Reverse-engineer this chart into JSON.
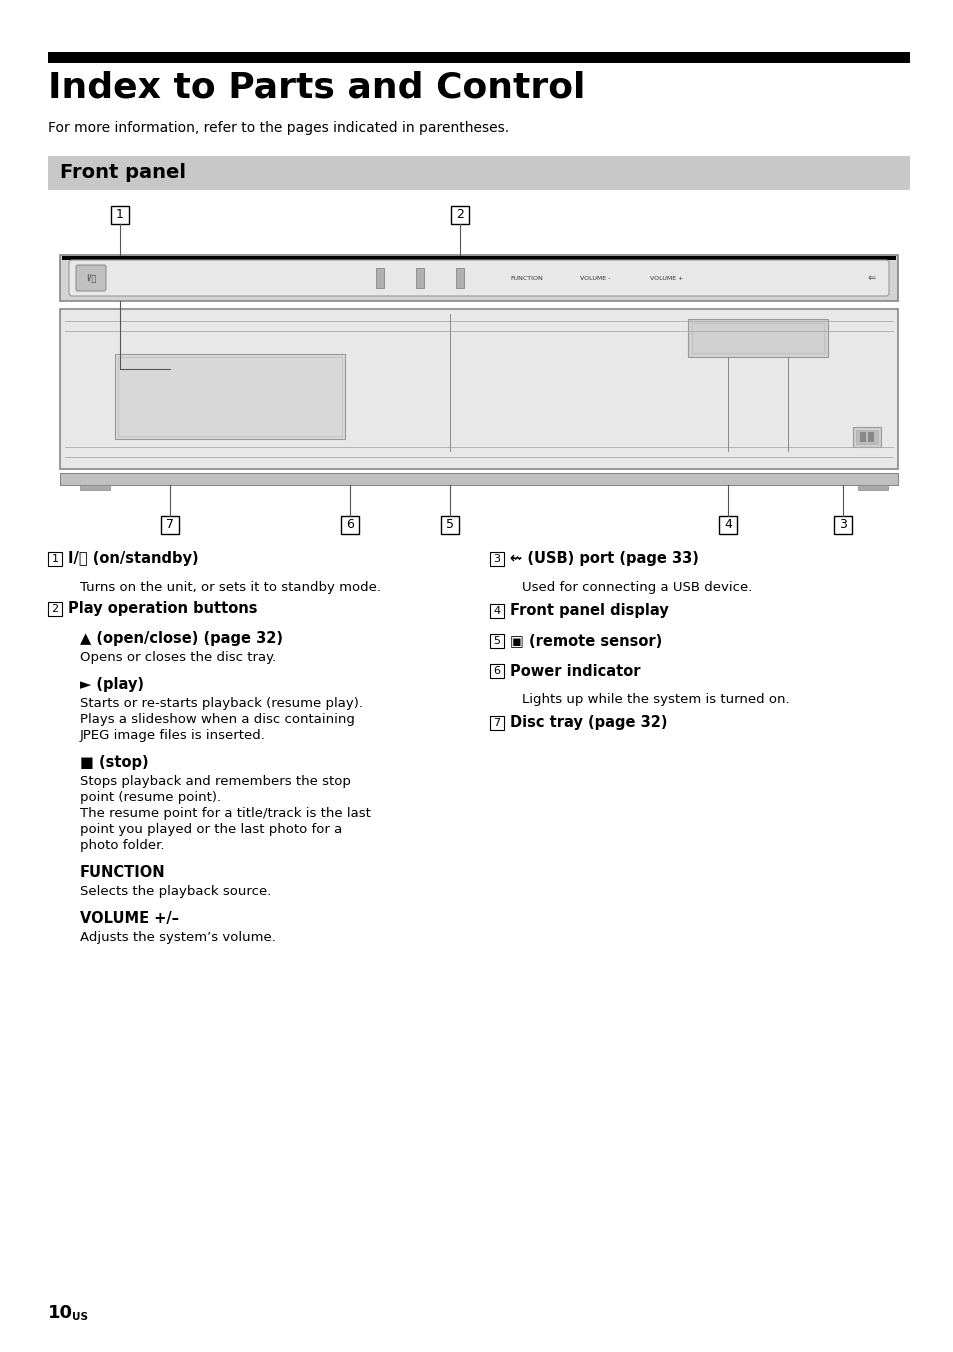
{
  "title": "Index to Parts and Control",
  "subtitle": "For more information, refer to the pages indicated in parentheses.",
  "section_header": "Front panel",
  "bg_color": "#ffffff",
  "page_number": "10",
  "page_suffix": "US"
}
